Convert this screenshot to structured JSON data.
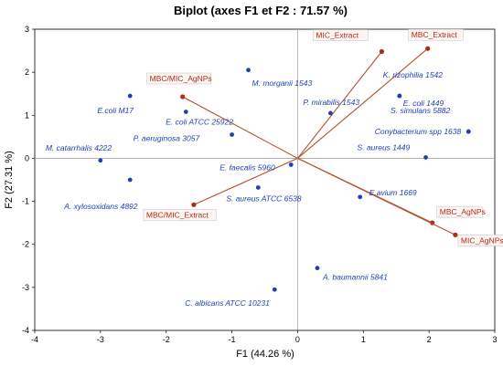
{
  "chart_data": {
    "type": "scatter",
    "title": "Biplot (axes F1 et F2 : 71.57 %)",
    "xlabel": "F1 (44.26 %)",
    "ylabel": "F2 (27.31 %)",
    "xlim": [
      -4,
      3
    ],
    "ylim": [
      -4,
      3
    ],
    "xticks": [
      "-4",
      "-3",
      "-2",
      "-1",
      "0",
      "1",
      "2",
      "3"
    ],
    "yticks": [
      "-4",
      "-3",
      "-2",
      "-1",
      "0",
      "1",
      "2",
      "3"
    ],
    "grid": false,
    "colors": {
      "observations": "#1f3fb8",
      "variables": "#b22a18",
      "vectors": "#b5512c",
      "axes": "#a9a9a9"
    },
    "observations": [
      {
        "label": "M. morganii 1543",
        "x": -0.75,
        "y": 2.05
      },
      {
        "label": "K. rizophilia 1542",
        "x": 1.55,
        "y": 1.45
      },
      {
        "label": "E.coli M17",
        "x": -2.55,
        "y": 1.45
      },
      {
        "label": "E. coli 1449",
        "x": 1.55,
        "y": 1.45
      },
      {
        "label": "P. mirabilis 1543",
        "x": 0.5,
        "y": 1.05
      },
      {
        "label": "E. coli ATCC 25922",
        "x": -1.7,
        "y": 1.08
      },
      {
        "label": "S. simulans 5882",
        "x": 2.6,
        "y": 0.62
      },
      {
        "label": "Conybacterium spp 1638",
        "x": 2.6,
        "y": 0.62
      },
      {
        "label": "P. aeruginosa 3057",
        "x": -1.0,
        "y": 0.55
      },
      {
        "label": "M. catarrhalis 4222",
        "x": -3.0,
        "y": -0.05
      },
      {
        "label": "S. aureus 1449",
        "x": 1.95,
        "y": 0.02
      },
      {
        "label": "E. faecalis 5960",
        "x": -0.1,
        "y": -0.15
      },
      {
        "label": "A. xylosoxidans 4892",
        "x": -2.55,
        "y": -0.5
      },
      {
        "label": "S. aureus ATCC 6538",
        "x": -0.6,
        "y": -0.68
      },
      {
        "label": "E.avium 1669",
        "x": 0.95,
        "y": -0.9
      },
      {
        "label": "A. baumannii 5841",
        "x": 0.3,
        "y": -2.55
      },
      {
        "label": "C. albicans ATCC 10231",
        "x": -0.35,
        "y": -3.05
      }
    ],
    "variables": [
      {
        "label": "MIC_Extract",
        "x": 1.28,
        "y": 2.48
      },
      {
        "label": "MBC_Extract",
        "x": 1.98,
        "y": 2.55
      },
      {
        "label": "MBC/MIC_AgNPs",
        "x": -1.75,
        "y": 1.43
      },
      {
        "label": "MBC/MIC_Extract",
        "x": -1.58,
        "y": -1.08
      },
      {
        "label": "MBC_AgNPs",
        "x": 2.05,
        "y": -1.5
      },
      {
        "label": "MIC_AgNPs",
        "x": 2.4,
        "y": -1.78
      }
    ]
  }
}
